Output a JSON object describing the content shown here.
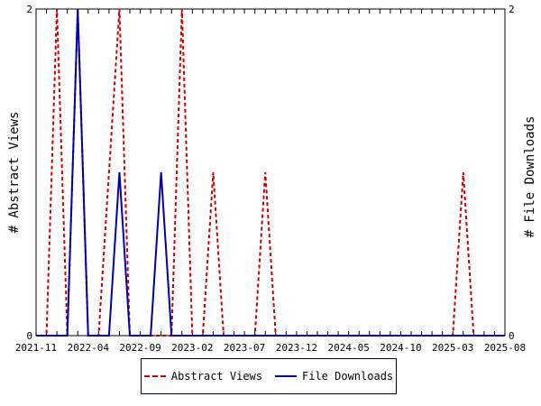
{
  "chart_data": {
    "type": "line",
    "x": [
      "2021-11",
      "2021-12",
      "2022-01",
      "2022-02",
      "2022-03",
      "2022-04",
      "2022-05",
      "2022-06",
      "2022-07",
      "2022-08",
      "2022-09",
      "2022-10",
      "2022-11",
      "2022-12",
      "2023-01",
      "2023-02",
      "2023-03",
      "2023-04",
      "2023-05",
      "2023-06",
      "2023-07",
      "2023-08",
      "2023-09",
      "2023-10",
      "2023-11",
      "2023-12",
      "2024-01",
      "2024-02",
      "2024-03",
      "2024-04",
      "2024-05",
      "2024-06",
      "2024-07",
      "2024-08",
      "2024-09",
      "2024-10",
      "2024-11",
      "2024-12",
      "2025-01",
      "2025-02",
      "2025-03",
      "2025-04",
      "2025-05",
      "2025-06",
      "2025-07",
      "2025-08"
    ],
    "xticks": [
      "2021-11",
      "2022-04",
      "2022-09",
      "2023-02",
      "2023-07",
      "2023-12",
      "2024-05",
      "2024-10",
      "2025-03",
      "2025-08"
    ],
    "series": [
      {
        "name": "Abstract Views",
        "color": "#cc0000",
        "dash": "dashed",
        "axis": "left",
        "values": [
          0,
          0,
          2,
          0,
          2,
          0,
          0,
          1,
          2,
          0,
          0,
          0,
          0,
          0,
          2,
          0,
          0,
          1,
          0,
          0,
          0,
          0,
          1,
          0,
          0,
          0,
          0,
          0,
          0,
          0,
          0,
          0,
          0,
          0,
          0,
          0,
          0,
          0,
          0,
          0,
          0,
          1,
          0,
          0,
          0,
          0
        ]
      },
      {
        "name": "File Downloads",
        "color": "#0000aa",
        "dash": "solid",
        "axis": "right",
        "values": [
          0,
          0,
          0,
          0,
          2,
          0,
          0,
          0,
          1,
          0,
          0,
          0,
          1,
          0,
          0,
          0,
          0,
          0,
          0,
          0,
          0,
          0,
          0,
          0,
          0,
          0,
          0,
          0,
          0,
          0,
          0,
          0,
          0,
          0,
          0,
          0,
          0,
          0,
          0,
          0,
          0,
          0,
          0,
          0,
          0,
          0
        ]
      }
    ],
    "ylabel": "# Abstract Views",
    "y2label": "# File Downloads",
    "ylim": [
      0,
      2
    ],
    "y2lim": [
      0,
      2
    ],
    "yticks": [
      "0",
      "2"
    ],
    "y2ticks": [
      "0",
      "2"
    ],
    "grid": false,
    "legend_position": "bottom"
  }
}
